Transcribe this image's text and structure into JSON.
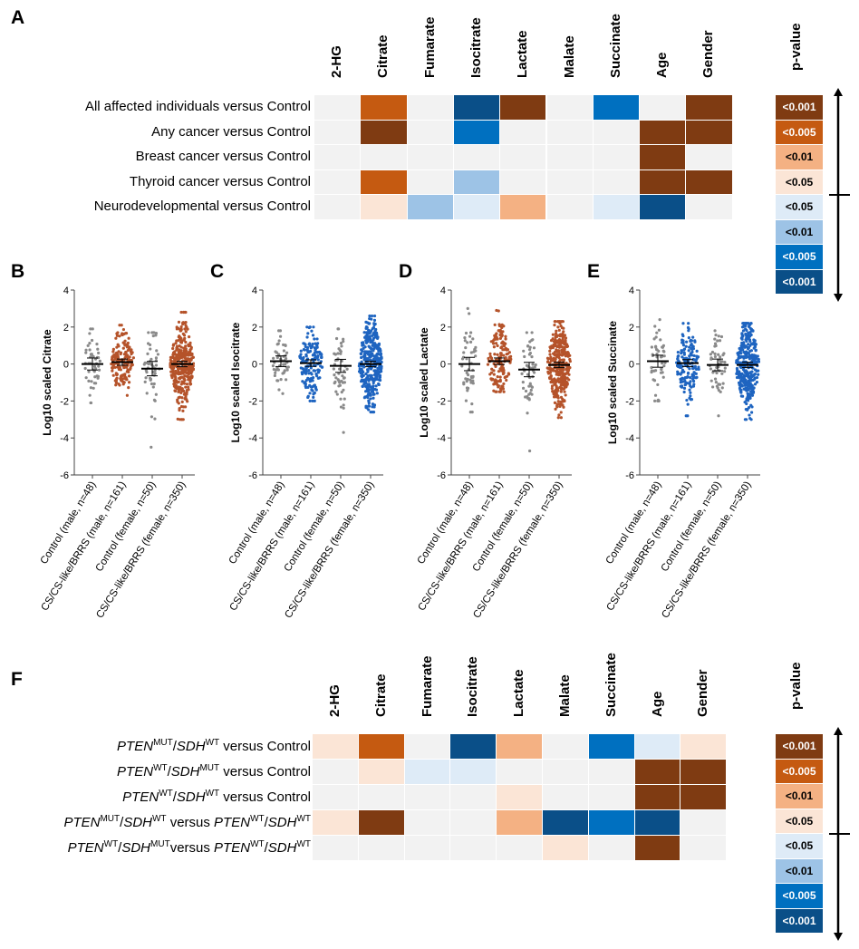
{
  "panels": {
    "A": "A",
    "B": "B",
    "C": "C",
    "D": "D",
    "E": "E",
    "F": "F"
  },
  "legend": {
    "title": "p-value",
    "labels": [
      "<0.001",
      "<0.005",
      "<0.01",
      "<0.05",
      "<0.05",
      "<0.01",
      "<0.005",
      "<0.001"
    ],
    "colors": [
      "#7f3b12",
      "#c55a11",
      "#f4b183",
      "#fbe5d6",
      "#deebf7",
      "#9dc3e6",
      "#0070c0",
      "#0a4f88"
    ],
    "text_colors": [
      "#fff",
      "#fff",
      "#000",
      "#000",
      "#000",
      "#000",
      "#fff",
      "#fff"
    ]
  },
  "colors": {
    "neutral": "#f2f2f2",
    "up": [
      "#fbe5d6",
      "#f4b183",
      "#c55a11",
      "#7f3b12"
    ],
    "down": [
      "#deebf7",
      "#9dc3e6",
      "#0070c0",
      "#0a4f88"
    ],
    "control": "#8a8a8a",
    "affected_brown": "#b5532a",
    "affected_blue": "#1e64c0"
  },
  "chart_data": [
    {
      "type": "heatmap",
      "panel": "A",
      "columns": [
        "2-HG",
        "Citrate",
        "Fumarate",
        "Isocitrate",
        "Lactate",
        "Malate",
        "Succinate",
        "Age",
        "Gender"
      ],
      "level_key": "positive = up (1:<0.05,2:<0.01,3:<0.005,4:<0.001), negative = down, 0 = n.s.",
      "rows": [
        {
          "label": "All affected individuals versus Control",
          "values": [
            0,
            3,
            0,
            -4,
            4,
            0,
            -3,
            0,
            4
          ]
        },
        {
          "label": "Any cancer versus Control",
          "values": [
            0,
            4,
            0,
            -3,
            0,
            0,
            0,
            4,
            4
          ]
        },
        {
          "label": "Breast cancer versus Control",
          "values": [
            0,
            0,
            0,
            0,
            0,
            0,
            0,
            4,
            0
          ]
        },
        {
          "label": "Thyroid cancer versus Control",
          "values": [
            0,
            3,
            0,
            -2,
            0,
            0,
            0,
            4,
            4
          ]
        },
        {
          "label": "Neurodevelopmental versus Control",
          "values": [
            0,
            1,
            -2,
            -1,
            2,
            0,
            -1,
            -4,
            0
          ]
        }
      ]
    },
    {
      "type": "scatter",
      "panel": "B",
      "ylabel": "Log10 scaled Citrate",
      "ylim": [
        -6,
        4
      ],
      "yticks": [
        "4",
        "2",
        "0",
        "-2",
        "-4",
        "-6"
      ],
      "accent": "brown",
      "categories": [
        "Control (male, n=48)",
        "CS/CS-like/BRRS (male, n=161)",
        "Control (female, n=50)",
        "CS/CS-like/BRRS (female, n=350)"
      ],
      "groups": [
        {
          "n": 48,
          "mean": 0.0,
          "sd": 0.9,
          "min": -2.1,
          "max": 1.9
        },
        {
          "n": 161,
          "mean": 0.1,
          "sd": 0.85,
          "min": -1.7,
          "max": 2.1
        },
        {
          "n": 50,
          "mean": -0.25,
          "sd": 1.1,
          "min": -4.5,
          "max": 1.7
        },
        {
          "n": 350,
          "mean": 0.0,
          "sd": 1.1,
          "min": -3.0,
          "max": 2.8
        }
      ]
    },
    {
      "type": "scatter",
      "panel": "C",
      "ylabel": "Log10 scaled Isocitrate",
      "ylim": [
        -6,
        4
      ],
      "yticks": [
        "4",
        "2",
        "0",
        "-2",
        "-4",
        "-6"
      ],
      "accent": "blue",
      "categories": [
        "Control (male, n=48)",
        "CS/CS-like/BRRS (male, n=161)",
        "Control (female, n=50)",
        "CS/CS-like/BRRS (female, n=350)"
      ],
      "groups": [
        {
          "n": 48,
          "mean": 0.15,
          "sd": 0.8,
          "min": -1.6,
          "max": 1.8
        },
        {
          "n": 161,
          "mean": 0.05,
          "sd": 0.9,
          "min": -2.0,
          "max": 2.0
        },
        {
          "n": 50,
          "mean": -0.1,
          "sd": 1.0,
          "min": -3.7,
          "max": 1.9
        },
        {
          "n": 350,
          "mean": 0.0,
          "sd": 1.1,
          "min": -2.6,
          "max": 2.6
        }
      ]
    },
    {
      "type": "scatter",
      "panel": "D",
      "ylabel": "Log10 scaled Lactate",
      "ylim": [
        -6,
        4
      ],
      "yticks": [
        "4",
        "2",
        "0",
        "-2",
        "-4",
        "-6"
      ],
      "accent": "brown",
      "categories": [
        "Control (male, n=48)",
        "CS/CS-like/BRRS (male, n=161)",
        "Control (female, n=50)",
        "CS/CS-like/BRRS (female, n=350)"
      ],
      "groups": [
        {
          "n": 48,
          "mean": 0.0,
          "sd": 1.0,
          "min": -2.6,
          "max": 3.0
        },
        {
          "n": 161,
          "mean": 0.15,
          "sd": 0.9,
          "min": -1.5,
          "max": 2.9
        },
        {
          "n": 50,
          "mean": -0.3,
          "sd": 1.1,
          "min": -4.7,
          "max": 1.7
        },
        {
          "n": 350,
          "mean": -0.05,
          "sd": 1.1,
          "min": -2.9,
          "max": 2.3
        }
      ]
    },
    {
      "type": "scatter",
      "panel": "E",
      "ylabel": "Log10 scaled Succinate",
      "ylim": [
        -6,
        4
      ],
      "yticks": [
        "4",
        "2",
        "0",
        "-2",
        "-4",
        "-6"
      ],
      "accent": "blue",
      "categories": [
        "Control (male, n=48)",
        "CS/CS-like/BRRS (male, n=161)",
        "Control (female, n=50)",
        "CS/CS-like/BRRS (female, n=350)"
      ],
      "groups": [
        {
          "n": 48,
          "mean": 0.15,
          "sd": 0.9,
          "min": -2.0,
          "max": 2.4
        },
        {
          "n": 161,
          "mean": 0.05,
          "sd": 0.95,
          "min": -2.8,
          "max": 2.2
        },
        {
          "n": 50,
          "mean": -0.05,
          "sd": 0.9,
          "min": -2.8,
          "max": 1.8
        },
        {
          "n": 350,
          "mean": -0.05,
          "sd": 1.1,
          "min": -3.0,
          "max": 2.2
        }
      ]
    },
    {
      "type": "heatmap",
      "panel": "F",
      "columns": [
        "2-HG",
        "Citrate",
        "Fumarate",
        "Isocitrate",
        "Lactate",
        "Malate",
        "Succinate",
        "Age",
        "Gender"
      ],
      "rows": [
        {
          "label": [
            {
              "t": "PTEN",
              "s": "i"
            },
            {
              "t": "MUT",
              "s": "sup"
            },
            {
              "t": "/",
              "s": ""
            },
            {
              "t": "SDH",
              "s": "i"
            },
            {
              "t": "WT",
              "s": "sup"
            },
            {
              "t": " versus Control",
              "s": ""
            }
          ],
          "values": [
            1,
            3,
            0,
            -4,
            2,
            0,
            -3,
            -1,
            1
          ]
        },
        {
          "label": [
            {
              "t": "PTEN",
              "s": "i"
            },
            {
              "t": "WT",
              "s": "sup"
            },
            {
              "t": "/",
              "s": ""
            },
            {
              "t": "SDH",
              "s": "i"
            },
            {
              "t": "MUT",
              "s": "sup"
            },
            {
              "t": " versus Control",
              "s": ""
            }
          ],
          "values": [
            0,
            1,
            -1,
            -1,
            0,
            0,
            0,
            4,
            4
          ]
        },
        {
          "label": [
            {
              "t": "PTEN",
              "s": "i"
            },
            {
              "t": "WT",
              "s": "sup"
            },
            {
              "t": "/",
              "s": ""
            },
            {
              "t": "SDH",
              "s": "i"
            },
            {
              "t": "WT",
              "s": "sup"
            },
            {
              "t": " versus Control",
              "s": ""
            }
          ],
          "values": [
            0,
            0,
            0,
            0,
            1,
            0,
            0,
            4,
            4
          ]
        },
        {
          "label": [
            {
              "t": "PTEN",
              "s": "i"
            },
            {
              "t": "MUT",
              "s": "sup"
            },
            {
              "t": "/",
              "s": ""
            },
            {
              "t": "SDH",
              "s": "i"
            },
            {
              "t": "WT",
              "s": "sup"
            },
            {
              "t": " versus ",
              "s": ""
            },
            {
              "t": "PTEN",
              "s": "i"
            },
            {
              "t": "WT",
              "s": "sup"
            },
            {
              "t": "/",
              "s": ""
            },
            {
              "t": "SDH",
              "s": "i"
            },
            {
              "t": "WT",
              "s": "sup"
            }
          ],
          "values": [
            1,
            4,
            0,
            0,
            2,
            -4,
            -3,
            -4,
            0
          ]
        },
        {
          "label": [
            {
              "t": "PTEN",
              "s": "i"
            },
            {
              "t": "WT",
              "s": "sup"
            },
            {
              "t": "/",
              "s": ""
            },
            {
              "t": "SDH",
              "s": "i"
            },
            {
              "t": "MUT",
              "s": "sup"
            },
            {
              "t": "versus ",
              "s": ""
            },
            {
              "t": "PTEN",
              "s": "i"
            },
            {
              "t": "WT",
              "s": "sup"
            },
            {
              "t": "/",
              "s": ""
            },
            {
              "t": "SDH",
              "s": "i"
            },
            {
              "t": "WT",
              "s": "sup"
            }
          ],
          "values": [
            0,
            0,
            0,
            0,
            0,
            1,
            0,
            4,
            0
          ]
        }
      ]
    }
  ]
}
